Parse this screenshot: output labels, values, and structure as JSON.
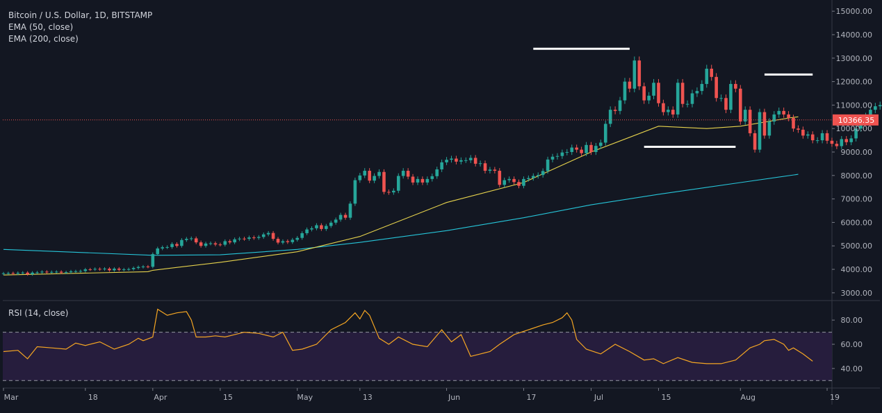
{
  "chart_data": [
    {
      "type": "candlestick",
      "title": "Bitcoin / U.S. Dollar, 1D, BITSTAMP",
      "indicators": [
        "EMA (50, close)",
        "EMA (200, close)"
      ],
      "last_price_label": "10366.35",
      "last_price": 10366.35,
      "ylim": [
        2700,
        15300
      ],
      "yticks": [
        3000,
        4000,
        5000,
        6000,
        7000,
        8000,
        9000,
        10000,
        11000,
        12000,
        13000,
        14000,
        15000
      ],
      "ytick_labels": [
        "3000.00",
        "4000.00",
        "5000.00",
        "6000.00",
        "7000.00",
        "8000.00",
        "9000.00",
        "10000.00",
        "11000.00",
        "12000.00",
        "13000.00",
        "14000.00",
        "15000.00"
      ],
      "x_range_days": [
        0,
        172
      ],
      "xticks": [
        {
          "day": 0,
          "label": "Mar"
        },
        {
          "day": 17,
          "label": "18"
        },
        {
          "day": 31,
          "label": "Apr"
        },
        {
          "day": 45,
          "label": "15"
        },
        {
          "day": 61,
          "label": "May"
        },
        {
          "day": 74,
          "label": "13"
        },
        {
          "day": 92,
          "label": "Jun"
        },
        {
          "day": 108,
          "label": "17"
        },
        {
          "day": 122,
          "label": "Jul"
        },
        {
          "day": 136,
          "label": "15"
        },
        {
          "day": 153,
          "label": "Aug"
        },
        {
          "day": 171,
          "label": "19"
        }
      ],
      "close_series": [
        3830,
        3840,
        3815,
        3850,
        3860,
        3790,
        3860,
        3870,
        3900,
        3880,
        3890,
        3900,
        3860,
        3880,
        3915,
        3920,
        3930,
        4000,
        3995,
        4020,
        4000,
        4030,
        3960,
        4030,
        3980,
        4000,
        4010,
        4060,
        4100,
        4120,
        4110,
        4650,
        4890,
        4940,
        4950,
        5080,
        5000,
        5250,
        5300,
        5320,
        5150,
        5000,
        5100,
        5110,
        5060,
        5050,
        5200,
        5150,
        5280,
        5310,
        5300,
        5360,
        5340,
        5380,
        5490,
        5550,
        5300,
        5140,
        5200,
        5160,
        5260,
        5340,
        5540,
        5700,
        5750,
        5880,
        5720,
        5850,
        5990,
        6120,
        6320,
        6200,
        6800,
        7800,
        8000,
        8200,
        7780,
        7980,
        8150,
        7300,
        7280,
        7350,
        7980,
        8200,
        7950,
        7700,
        7850,
        7700,
        7850,
        7970,
        8260,
        8560,
        8670,
        8720,
        8590,
        8650,
        8650,
        8750,
        8500,
        8520,
        8200,
        8250,
        8200,
        7600,
        7800,
        7850,
        7720,
        7560,
        7850,
        7890,
        7980,
        8020,
        8190,
        8680,
        8800,
        8830,
        8980,
        9000,
        9190,
        9100,
        8950,
        9300,
        9000,
        9260,
        9400,
        10200,
        10800,
        10750,
        11200,
        12000,
        11700,
        12900,
        11800,
        11200,
        11400,
        11950,
        11080,
        10700,
        10800,
        10600,
        11950,
        11050,
        11050,
        11500,
        11600,
        11900,
        12550,
        12200,
        11300,
        11300,
        10800,
        11900,
        11700,
        10300,
        10800,
        9800,
        9100,
        10700,
        9700,
        10300,
        10600,
        10750,
        10600,
        10450,
        10000,
        9950,
        9700,
        9750,
        9500,
        9500,
        9800,
        9480,
        9350,
        9250,
        9550,
        9420,
        9580,
        10000,
        10370,
        10530,
        10800,
        10950,
        11000,
        11000,
        11650,
        11850,
        11250,
        11900,
        11950,
        11830,
        11900,
        11800,
        11550,
        11150,
        11350,
        11300,
        10850,
        10366
      ],
      "ema50": [
        [
          0,
          3760
        ],
        [
          30,
          3900
        ],
        [
          31,
          3960
        ],
        [
          45,
          4300
        ],
        [
          61,
          4750
        ],
        [
          74,
          5400
        ],
        [
          92,
          6850
        ],
        [
          108,
          7700
        ],
        [
          122,
          9000
        ],
        [
          136,
          10100
        ],
        [
          146,
          10000
        ],
        [
          153,
          10100
        ],
        [
          163,
          10450
        ],
        [
          165,
          10500
        ]
      ],
      "ema200": [
        [
          0,
          4850
        ],
        [
          31,
          4600
        ],
        [
          45,
          4620
        ],
        [
          61,
          4850
        ],
        [
          74,
          5150
        ],
        [
          92,
          5650
        ],
        [
          108,
          6200
        ],
        [
          122,
          6750
        ],
        [
          136,
          7200
        ],
        [
          153,
          7700
        ],
        [
          165,
          8050
        ]
      ],
      "annotations": [
        {
          "label": "",
          "from_day": 110,
          "to_day": 130,
          "price": 13400
        },
        {
          "label": "",
          "from_day": 158,
          "to_day": 168,
          "price": 12300
        },
        {
          "label": "",
          "from_day": 133,
          "to_day": 152,
          "price": 9220
        }
      ]
    },
    {
      "type": "line",
      "title": "RSI (14, close)",
      "ylim": [
        25,
        95
      ],
      "yticks": [
        40,
        60,
        80
      ],
      "ytick_labels": [
        "40.00",
        "60.00",
        "80.00"
      ],
      "band": [
        30,
        70
      ],
      "x": [
        0,
        3,
        5,
        7,
        10,
        13,
        15,
        17,
        20,
        23,
        26,
        28,
        29,
        31,
        32,
        34,
        36,
        38,
        39,
        40,
        42,
        44,
        46,
        48,
        50,
        53,
        56,
        58,
        60,
        62,
        65,
        68,
        71,
        73,
        74,
        75,
        76,
        78,
        80,
        82,
        85,
        88,
        91,
        93,
        95,
        97,
        99,
        101,
        103,
        106,
        109,
        112,
        114,
        116,
        117,
        118,
        119,
        121,
        124,
        127,
        130,
        133,
        135,
        137,
        140,
        143,
        146,
        149,
        152,
        155,
        157,
        158,
        160,
        162,
        163,
        164,
        166,
        168
      ],
      "values": [
        54,
        55,
        48,
        58,
        57,
        56,
        61,
        59,
        62,
        56,
        60,
        65,
        63,
        66,
        89,
        84,
        86,
        87,
        80,
        66,
        66,
        67,
        66,
        68,
        70,
        69,
        66,
        70,
        55,
        56,
        60,
        72,
        78,
        86,
        81,
        88,
        84,
        65,
        60,
        66,
        60,
        58,
        72,
        62,
        68,
        50,
        52,
        54,
        60,
        68,
        72,
        76,
        78,
        82,
        86,
        80,
        64,
        56,
        52,
        60,
        54,
        47,
        48,
        44,
        49,
        45,
        44,
        44,
        47,
        57,
        60,
        63,
        64,
        60,
        55,
        57,
        52,
        46
      ]
    }
  ]
}
